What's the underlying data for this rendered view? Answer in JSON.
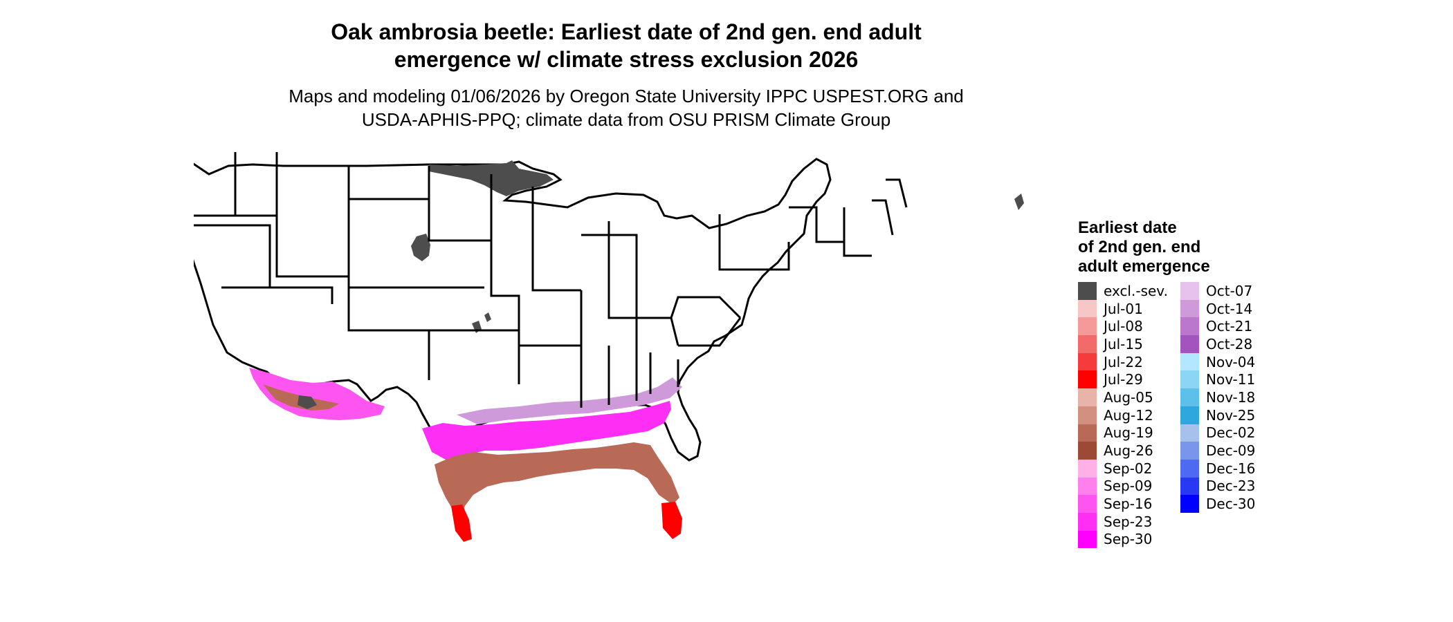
{
  "title_line1": "Oak ambrosia beetle: Earliest date of 2nd gen. end adult",
  "title_line2": "emergence w/ climate stress exclusion 2026",
  "subtitle_line1": "Maps and modeling 01/06/2026 by Oregon State University IPPC USPEST.ORG and",
  "subtitle_line2": "USDA-APHIS-PPQ; climate data from OSU PRISM Climate Group",
  "legend": {
    "title_line1": "Earliest date",
    "title_line2": "of 2nd gen. end",
    "title_line3": "adult emergence",
    "col1": [
      {
        "label": "excl.-sev.",
        "color": "#4d4d4d"
      },
      {
        "label": "Jul-01",
        "color": "#f7c6c6"
      },
      {
        "label": "Jul-08",
        "color": "#f59999"
      },
      {
        "label": "Jul-15",
        "color": "#f26a6a"
      },
      {
        "label": "Jul-22",
        "color": "#f53b3b"
      },
      {
        "label": "Jul-29",
        "color": "#ff0000"
      },
      {
        "label": "Aug-05",
        "color": "#e8b3a8"
      },
      {
        "label": "Aug-12",
        "color": "#d19080"
      },
      {
        "label": "Aug-19",
        "color": "#b86a56"
      },
      {
        "label": "Aug-26",
        "color": "#9c4a36"
      },
      {
        "label": "Sep-02",
        "color": "#ffb0e6"
      },
      {
        "label": "Sep-09",
        "color": "#ff80ec"
      },
      {
        "label": "Sep-16",
        "color": "#ff55f0"
      },
      {
        "label": "Sep-23",
        "color": "#ff2ef5"
      },
      {
        "label": "Sep-30",
        "color": "#ff00ff"
      }
    ],
    "col2": [
      {
        "label": "Oct-07",
        "color": "#e6c3ec"
      },
      {
        "label": "Oct-14",
        "color": "#cf9ad9"
      },
      {
        "label": "Oct-21",
        "color": "#bb77cc"
      },
      {
        "label": "Oct-28",
        "color": "#a454bf"
      },
      {
        "label": "Nov-04",
        "color": "#b3e6ff"
      },
      {
        "label": "Nov-11",
        "color": "#8cd6f5"
      },
      {
        "label": "Nov-18",
        "color": "#5cc0ea"
      },
      {
        "label": "Nov-25",
        "color": "#2ea6de"
      },
      {
        "label": "Dec-02",
        "color": "#a6c2ec"
      },
      {
        "label": "Dec-09",
        "color": "#7a96ec"
      },
      {
        "label": "Dec-16",
        "color": "#4f6af2"
      },
      {
        "label": "Dec-23",
        "color": "#2838f5"
      },
      {
        "label": "Dec-30",
        "color": "#0000ff"
      }
    ]
  }
}
